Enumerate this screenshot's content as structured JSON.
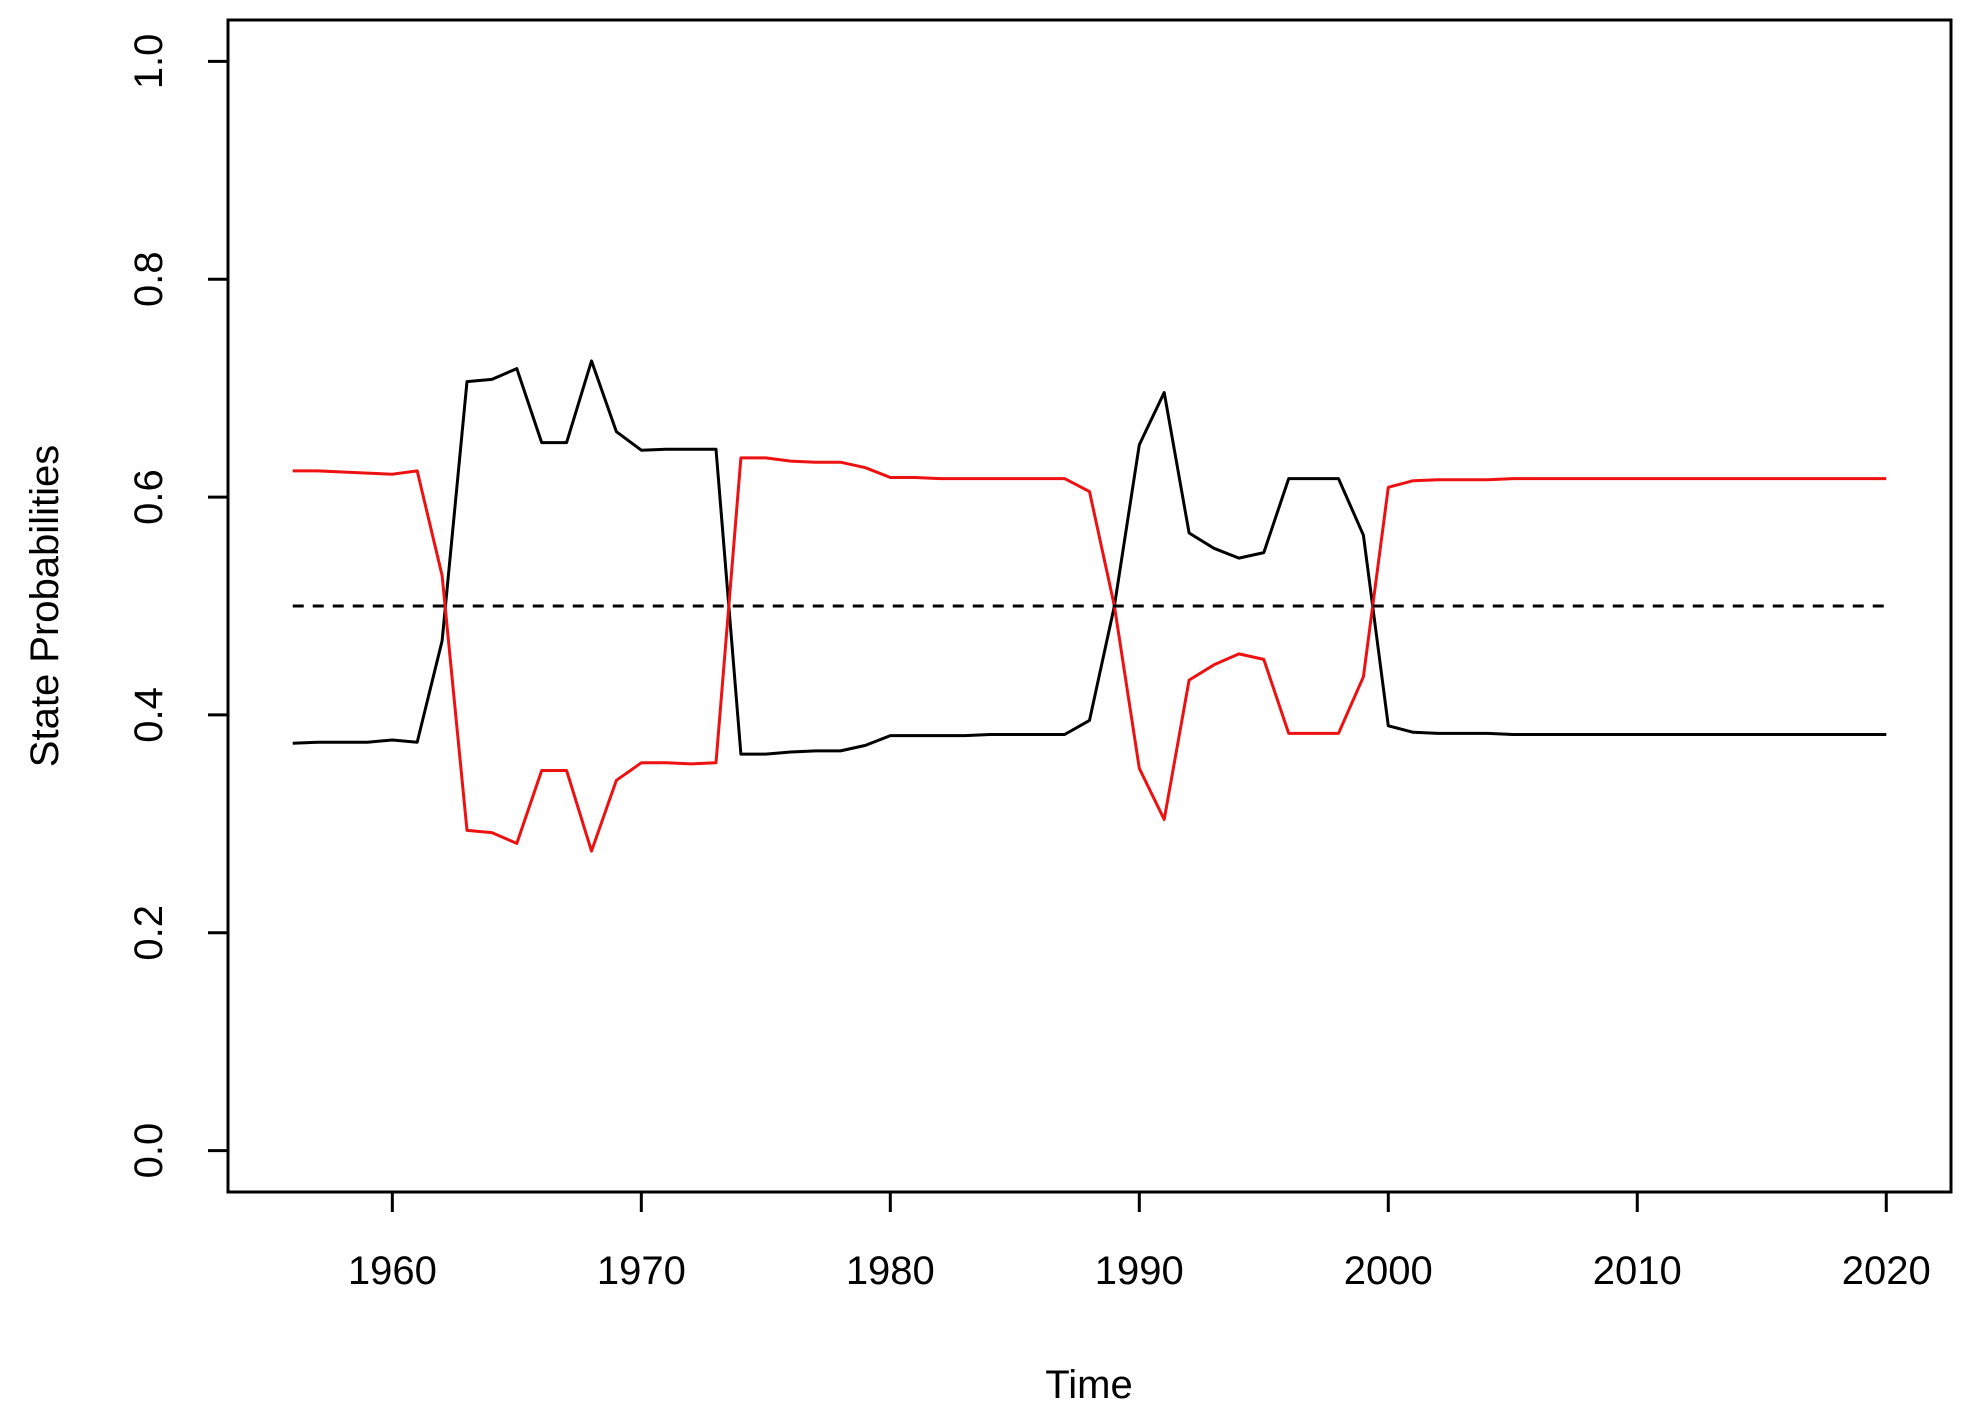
{
  "chart_data": {
    "type": "line",
    "title": "",
    "xlabel": "Time",
    "ylabel": "State Probabilities",
    "xlim": [
      1953.4,
      2022.6
    ],
    "ylim": [
      -0.038,
      1.038
    ],
    "xticks": [
      1960,
      1970,
      1980,
      1990,
      2000,
      2010,
      2020
    ],
    "xtick_labels": [
      "1960",
      "1970",
      "1980",
      "1990",
      "2000",
      "2010",
      "2020"
    ],
    "yticks": [
      0.0,
      0.2,
      0.4,
      0.6,
      0.8,
      1.0
    ],
    "ytick_labels": [
      "0.0",
      "0.2",
      "0.4",
      "0.6",
      "0.8",
      "1.0"
    ],
    "grid": false,
    "legend": "none",
    "x": [
      1956,
      1957,
      1958,
      1959,
      1960,
      1961,
      1962,
      1963,
      1964,
      1965,
      1966,
      1967,
      1968,
      1969,
      1970,
      1971,
      1972,
      1973,
      1974,
      1975,
      1976,
      1977,
      1978,
      1979,
      1980,
      1981,
      1982,
      1983,
      1984,
      1985,
      1986,
      1987,
      1988,
      1989,
      1990,
      1991,
      1992,
      1993,
      1994,
      1995,
      1996,
      1997,
      1998,
      1999,
      2000,
      2001,
      2002,
      2003,
      2004,
      2005,
      2006,
      2007,
      2008,
      2009,
      2010,
      2011,
      2012,
      2013,
      2014,
      2015,
      2016,
      2017,
      2018,
      2019,
      2020
    ],
    "series": [
      {
        "color": "#000000",
        "values": [
          0.374,
          0.375,
          0.375,
          0.375,
          0.377,
          0.375,
          0.468,
          0.706,
          0.708,
          0.718,
          0.65,
          0.65,
          0.725,
          0.66,
          0.643,
          0.644,
          0.644,
          0.644,
          0.364,
          0.364,
          0.366,
          0.367,
          0.367,
          0.372,
          0.381,
          0.381,
          0.381,
          0.381,
          0.382,
          0.382,
          0.382,
          0.382,
          0.395,
          0.5,
          0.648,
          0.696,
          0.567,
          0.553,
          0.544,
          0.549,
          0.617,
          0.617,
          0.617,
          0.565,
          0.39,
          0.384,
          0.383,
          0.383,
          0.383,
          0.382,
          0.382,
          0.382,
          0.382,
          0.382,
          0.382,
          0.382,
          0.382,
          0.382,
          0.382,
          0.382,
          0.382,
          0.382,
          0.382,
          0.382,
          0.382
        ]
      },
      {
        "color": "#ee1111",
        "values": [
          0.624,
          0.624,
          0.623,
          0.622,
          0.621,
          0.624,
          0.528,
          0.294,
          0.292,
          0.282,
          0.349,
          0.349,
          0.275,
          0.34,
          0.356,
          0.356,
          0.355,
          0.356,
          0.636,
          0.636,
          0.633,
          0.632,
          0.632,
          0.627,
          0.618,
          0.618,
          0.617,
          0.617,
          0.617,
          0.617,
          0.617,
          0.617,
          0.605,
          0.5,
          0.351,
          0.304,
          0.432,
          0.446,
          0.456,
          0.451,
          0.383,
          0.383,
          0.383,
          0.435,
          0.609,
          0.615,
          0.616,
          0.616,
          0.616,
          0.617,
          0.617,
          0.617,
          0.617,
          0.617,
          0.617,
          0.617,
          0.617,
          0.617,
          0.617,
          0.617,
          0.617,
          0.617,
          0.617,
          0.617,
          0.617
        ]
      }
    ],
    "reference_line": {
      "y": 0.5,
      "style": "dashed",
      "color": "#000000"
    }
  }
}
